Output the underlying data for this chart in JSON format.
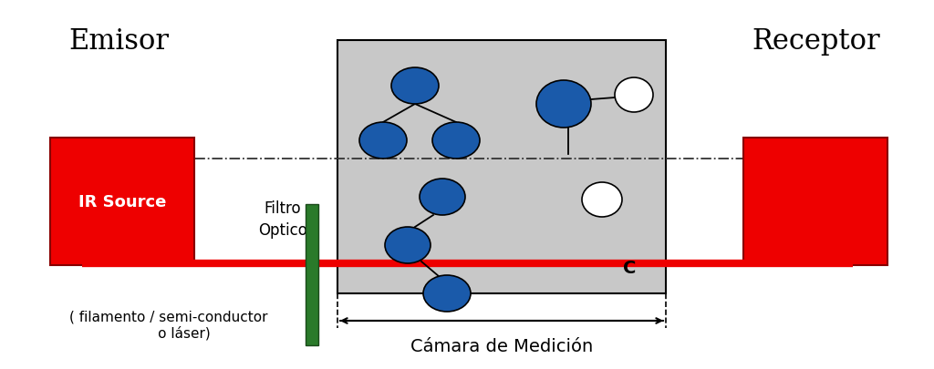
{
  "bg_color": "#ffffff",
  "chamber_color": "#c8c8c8",
  "red_box_color": "#ee0000",
  "green_filter_color": "#2a7a2a",
  "beam_color": "#ee0000",
  "molecule_blue_color": "#1a5aaa",
  "title_emisor": "Emisor",
  "title_receptor": "Receptor",
  "label_ir": "IR Source",
  "label_filtro": "Filtro\nOptico",
  "label_camara": "Cámara de Medición",
  "label_filamento": "( filamento / semi-conductor\n       o láser)",
  "label_c": "C"
}
